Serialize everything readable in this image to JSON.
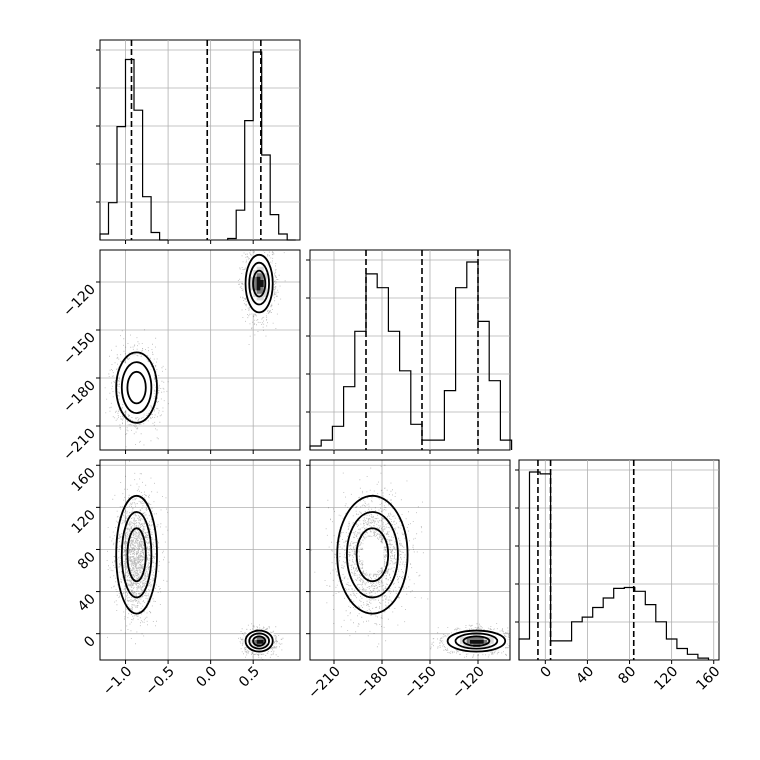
{
  "chart_data": {
    "type": "corner",
    "grid": true,
    "colors": {
      "line": "#000000",
      "grid": "#b0b0b0",
      "points": "#000000",
      "background": "#ffffff"
    },
    "parameters": [
      {
        "range": [
          -1.3,
          1.05
        ],
        "ticks": [
          {
            "v": -1.0,
            "label": "−1.0"
          },
          {
            "v": -0.5,
            "label": "−0.5"
          },
          {
            "v": 0.0,
            "label": "0.0"
          },
          {
            "v": 0.5,
            "label": "0.5"
          }
        ],
        "quantiles": [
          -0.93,
          -0.04,
          0.59
        ],
        "hist": {
          "edges": [
            -1.3,
            -1.2,
            -1.1,
            -1.0,
            -0.9,
            -0.8,
            -0.7,
            -0.6,
            -0.5,
            0.2,
            0.3,
            0.4,
            0.5,
            0.6,
            0.7,
            0.8,
            0.9,
            1.0
          ],
          "counts": [
            0.04,
            0.25,
            0.76,
            1.21,
            0.87,
            0.29,
            0.05,
            0.0,
            null,
            0.01,
            0.2,
            0.8,
            1.26,
            0.57,
            0.17,
            0.04,
            0.0
          ]
        }
      },
      {
        "range": [
          -225,
          -100
        ],
        "ticks": [
          {
            "v": -120,
            "label": "−120"
          },
          {
            "v": -150,
            "label": "−150"
          },
          {
            "v": -180,
            "label": "−180"
          },
          {
            "v": -210,
            "label": "−210"
          }
        ],
        "quantiles": [
          -190,
          -155,
          -120
        ],
        "hist": {
          "edges": [
            -225,
            -218,
            -211,
            -204,
            -197,
            -190,
            -183,
            -176,
            -169,
            -162,
            -155,
            -148,
            -141,
            -134,
            -127,
            -120,
            -113,
            -106,
            -99
          ],
          "counts": [
            0.02,
            0.05,
            0.12,
            0.32,
            0.6,
            0.89,
            0.82,
            0.6,
            0.4,
            0.13,
            0.05,
            0.05,
            0.3,
            0.82,
            0.95,
            0.65,
            0.35,
            0.05
          ]
        }
      },
      {
        "range": [
          -25,
          165
        ],
        "ticks": [
          {
            "v": 0,
            "label": "0"
          },
          {
            "v": 40,
            "label": "40"
          },
          {
            "v": 80,
            "label": "80"
          },
          {
            "v": 120,
            "label": "120"
          },
          {
            "v": 160,
            "label": "160"
          }
        ],
        "quantiles": [
          -7,
          5,
          84
        ],
        "hist": {
          "edges": [
            -25,
            -15,
            -5,
            5,
            15,
            25,
            35,
            45,
            55,
            65,
            75,
            85,
            95,
            105,
            115,
            125,
            135,
            145,
            155
          ],
          "counts": [
            0.22,
            1.97,
            1.95,
            0.2,
            0.2,
            0.4,
            0.45,
            0.55,
            0.65,
            0.75,
            0.76,
            0.72,
            0.58,
            0.4,
            0.22,
            0.12,
            0.06,
            0.02
          ]
        }
      }
    ],
    "modes": [
      {
        "weight": 0.4,
        "mean": [
          -0.87,
          -186,
          75
        ],
        "sd": [
          0.12,
          11,
          28
        ]
      },
      {
        "weight": 0.6,
        "mean": [
          0.57,
          -121,
          -7
        ],
        "sd": [
          0.08,
          9,
          5
        ]
      }
    ]
  }
}
